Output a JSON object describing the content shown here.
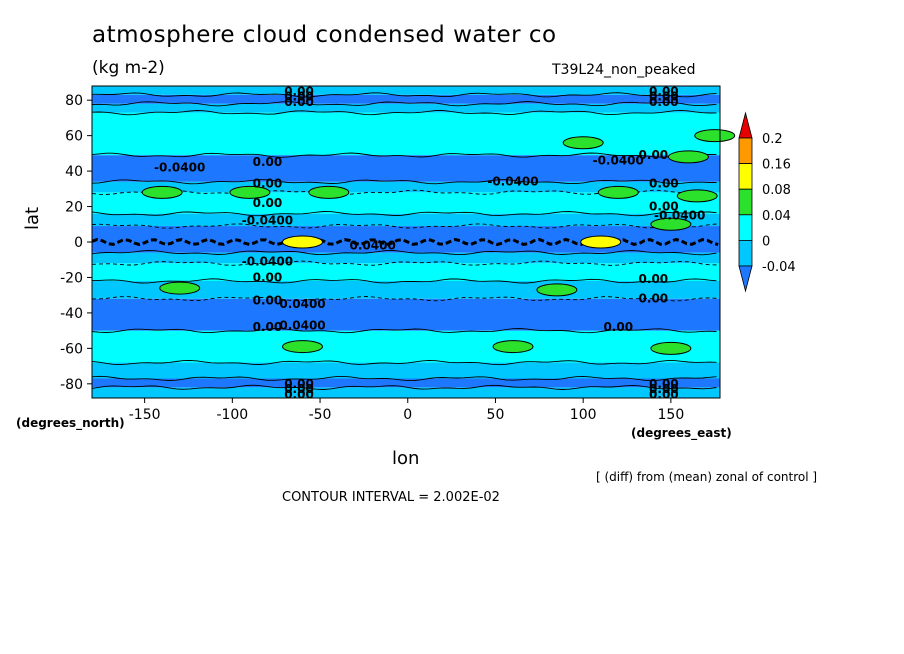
{
  "chart_data": {
    "type": "heatmap",
    "title": "atmosphere cloud condensed water co",
    "units": "(kg m-2)",
    "run_label": "T39L24_non_peaked",
    "xlabel": "lon",
    "ylabel": "lat",
    "x_unit_label": "(degrees_east)",
    "y_unit_label": "(degrees_north)",
    "x_ticks": [
      -150,
      -100,
      -50,
      0,
      50,
      100,
      150
    ],
    "y_ticks": [
      -80,
      -60,
      -40,
      -20,
      0,
      20,
      40,
      60,
      80
    ],
    "xlim": [
      -180,
      178
    ],
    "ylim": [
      -88,
      88
    ],
    "colorbar": {
      "levels": [
        -0.04,
        0,
        0.04,
        0.08,
        0.16,
        0.2
      ],
      "labels": [
        "-0.04",
        "0",
        "0.04",
        "0.08",
        "0.16",
        "0.2"
      ],
      "colors": [
        "#1e78ff",
        "#00c8ff",
        "#00ffff",
        "#2ce12c",
        "#ffff00",
        "#ff9900",
        "#e60000"
      ]
    },
    "bands": [
      {
        "lat": [
          -88,
          -82
        ],
        "class": 1
      },
      {
        "lat": [
          -82,
          -77
        ],
        "class": 0
      },
      {
        "lat": [
          -77,
          -68
        ],
        "class": 1
      },
      {
        "lat": [
          -68,
          -50
        ],
        "class": 2
      },
      {
        "lat": [
          -50,
          -32
        ],
        "class": 0
      },
      {
        "lat": [
          -32,
          -22
        ],
        "class": 1
      },
      {
        "lat": [
          -22,
          -12
        ],
        "class": 2
      },
      {
        "lat": [
          -12,
          -6
        ],
        "class": 1
      },
      {
        "lat": [
          -6,
          9
        ],
        "class": 0
      },
      {
        "lat": [
          9,
          16
        ],
        "class": 1
      },
      {
        "lat": [
          16,
          28
        ],
        "class": 2
      },
      {
        "lat": [
          28,
          34
        ],
        "class": 1
      },
      {
        "lat": [
          34,
          49
        ],
        "class": 0
      },
      {
        "lat": [
          49,
          73
        ],
        "class": 2
      },
      {
        "lat": [
          73,
          78
        ],
        "class": 1
      },
      {
        "lat": [
          78,
          83
        ],
        "class": 0
      },
      {
        "lat": [
          83,
          88
        ],
        "class": 1
      }
    ],
    "patches": [
      {
        "lon": -140,
        "lat": 28,
        "class": 3
      },
      {
        "lon": -90,
        "lat": 28,
        "class": 3
      },
      {
        "lon": -45,
        "lat": 28,
        "class": 3
      },
      {
        "lon": 120,
        "lat": 28,
        "class": 3
      },
      {
        "lon": 165,
        "lat": 26,
        "class": 3
      },
      {
        "lon": 100,
        "lat": 56,
        "class": 3
      },
      {
        "lon": 175,
        "lat": 60,
        "class": 3
      },
      {
        "lon": 160,
        "lat": 48,
        "class": 3
      },
      {
        "lon": 150,
        "lat": 10,
        "class": 3
      },
      {
        "lon": -130,
        "lat": -26,
        "class": 3
      },
      {
        "lon": 85,
        "lat": -27,
        "class": 3
      },
      {
        "lon": -60,
        "lat": -59,
        "class": 3
      },
      {
        "lon": 60,
        "lat": -59,
        "class": 3
      },
      {
        "lon": 150,
        "lat": -60,
        "class": 3
      },
      {
        "lon": -60,
        "lat": 0,
        "class": 4
      },
      {
        "lon": 110,
        "lat": 0,
        "class": 4
      }
    ],
    "contour_labels": [
      {
        "lon": -62,
        "lat": 85,
        "text": "0.00"
      },
      {
        "lon": -62,
        "lat": 82,
        "text": "0.00"
      },
      {
        "lon": -62,
        "lat": 79,
        "text": "0.00"
      },
      {
        "lon": 146,
        "lat": 85,
        "text": "0.00"
      },
      {
        "lon": 146,
        "lat": 82,
        "text": "0.00"
      },
      {
        "lon": 146,
        "lat": 79,
        "text": "0.00"
      },
      {
        "lon": -130,
        "lat": 42,
        "text": "-0.0400"
      },
      {
        "lon": -80,
        "lat": 45,
        "text": "0.00"
      },
      {
        "lon": 120,
        "lat": 46,
        "text": "-0.0400"
      },
      {
        "lon": 140,
        "lat": 49,
        "text": "0.00"
      },
      {
        "lon": 60,
        "lat": 34,
        "text": "-0.0400"
      },
      {
        "lon": -80,
        "lat": 33,
        "text": "0.00"
      },
      {
        "lon": 146,
        "lat": 33,
        "text": "0.00"
      },
      {
        "lon": -80,
        "lat": 22,
        "text": "0.00"
      },
      {
        "lon": 146,
        "lat": 20,
        "text": "0.00"
      },
      {
        "lon": -80,
        "lat": 12,
        "text": "-0.0400"
      },
      {
        "lon": 155,
        "lat": 15,
        "text": "-0.0400"
      },
      {
        "lon": -20,
        "lat": -2,
        "text": "0.0400"
      },
      {
        "lon": -80,
        "lat": -11,
        "text": "-0.0400"
      },
      {
        "lon": -80,
        "lat": -20,
        "text": "0.00"
      },
      {
        "lon": 140,
        "lat": -21,
        "text": "0.00"
      },
      {
        "lon": -80,
        "lat": -33,
        "text": "0.00"
      },
      {
        "lon": -60,
        "lat": -35,
        "text": "0.0400"
      },
      {
        "lon": 140,
        "lat": -32,
        "text": "0.00"
      },
      {
        "lon": -60,
        "lat": -47,
        "text": "0.0400"
      },
      {
        "lon": 120,
        "lat": -48,
        "text": "0.00"
      },
      {
        "lon": -80,
        "lat": -48,
        "text": "0.00"
      },
      {
        "lon": -62,
        "lat": -80,
        "text": "0.00"
      },
      {
        "lon": -62,
        "lat": -83,
        "text": "0.00"
      },
      {
        "lon": -62,
        "lat": -86,
        "text": "0.00"
      },
      {
        "lon": 146,
        "lat": -80,
        "text": "0.00"
      },
      {
        "lon": 146,
        "lat": -83,
        "text": "0.00"
      },
      {
        "lon": 146,
        "lat": -86,
        "text": "0.00"
      }
    ]
  },
  "page": {
    "title": "atmosphere cloud condensed water co",
    "units": "(kg m-2)",
    "run_label": "T39L24_non_peaked",
    "xlabel": "lon",
    "ylabel": "lat",
    "x_unit_label": "(degrees_east)",
    "y_unit_label": "(degrees_north)",
    "note": "[ (diff) from (mean) zonal of control ]",
    "contour_interval": "CONTOUR INTERVAL = 2.002E-02"
  }
}
